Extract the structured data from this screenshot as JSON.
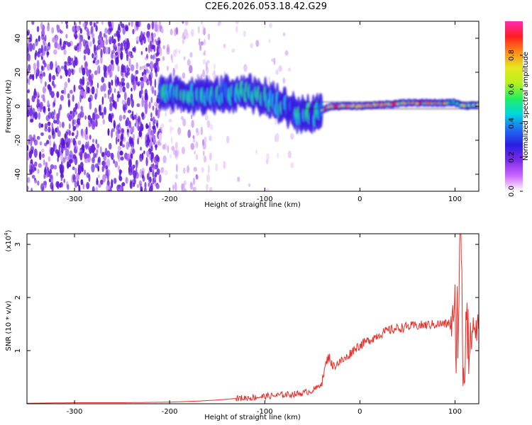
{
  "title": "C2E6.2026.053.18.42.G29",
  "colors": {
    "snr_line": "#e8302b",
    "colormap": [
      "#ffffff",
      "#cc66ff",
      "#7a2be8",
      "#3a1fe0",
      "#1e6ef5",
      "#00d6e0",
      "#22f060",
      "#e6e61e",
      "#ff8c1a",
      "#ff1e1e",
      "#ff2ab4"
    ]
  },
  "chart_data": [
    {
      "type": "heatmap",
      "xlabel": "Height of straight line (km)",
      "ylabel": "Frequency (Hz)",
      "xlim": [
        -350,
        125
      ],
      "ylim": [
        -50,
        50
      ],
      "xticks": [
        -300,
        -200,
        -100,
        0,
        100
      ],
      "yticks": [
        -40,
        -20,
        0,
        20,
        40
      ],
      "colorbar": {
        "label": "Normalized spectral amplitude",
        "range": [
          0,
          1
        ],
        "ticks": [
          "0.0",
          "0.2",
          "0.4",
          "0.6",
          "0.8"
        ]
      },
      "ridge": {
        "x": [
          -210,
          -180,
          -150,
          -120,
          -100,
          -80,
          -60,
          -50,
          -40,
          -30,
          0,
          50,
          100,
          110,
          125
        ],
        "y": [
          7,
          7,
          6,
          8,
          5,
          0,
          -6,
          -5,
          -2,
          0,
          0,
          2,
          2,
          0,
          1
        ]
      }
    },
    {
      "type": "line",
      "xlabel": "Height of straight line (km)",
      "ylabel": "SNR (10 * v/v)",
      "y_multiplier": "(x10",
      "y_multiplier_exp": "4",
      "y_multiplier_close": ")",
      "xlim": [
        -350,
        125
      ],
      "ylim": [
        0,
        3.2
      ],
      "xticks": [
        -300,
        -200,
        -100,
        0,
        100
      ],
      "yticks": [
        1,
        2,
        3
      ],
      "x": [
        -350,
        -300,
        -250,
        -200,
        -170,
        -150,
        -130,
        -110,
        -100,
        -90,
        -80,
        -70,
        -60,
        -50,
        -45,
        -40,
        -35,
        -32,
        -30,
        -28,
        -25,
        -20,
        -15,
        -10,
        -5,
        0,
        10,
        20,
        30,
        40,
        50,
        60,
        70,
        80,
        90,
        95,
        100,
        103,
        105,
        107,
        108,
        110,
        112,
        115,
        118,
        125
      ],
      "y": [
        0.01,
        0.02,
        0.02,
        0.03,
        0.05,
        0.07,
        0.1,
        0.12,
        0.14,
        0.15,
        0.17,
        0.18,
        0.2,
        0.25,
        0.3,
        0.4,
        0.8,
        0.9,
        0.75,
        0.7,
        0.75,
        0.8,
        0.85,
        0.95,
        1.05,
        1.1,
        1.2,
        1.3,
        1.38,
        1.42,
        1.45,
        1.47,
        1.48,
        1.5,
        1.5,
        1.52,
        1.5,
        1.6,
        2.6,
        3.2,
        1.2,
        0.4,
        2.4,
        0.9,
        1.42,
        1.43
      ]
    }
  ]
}
